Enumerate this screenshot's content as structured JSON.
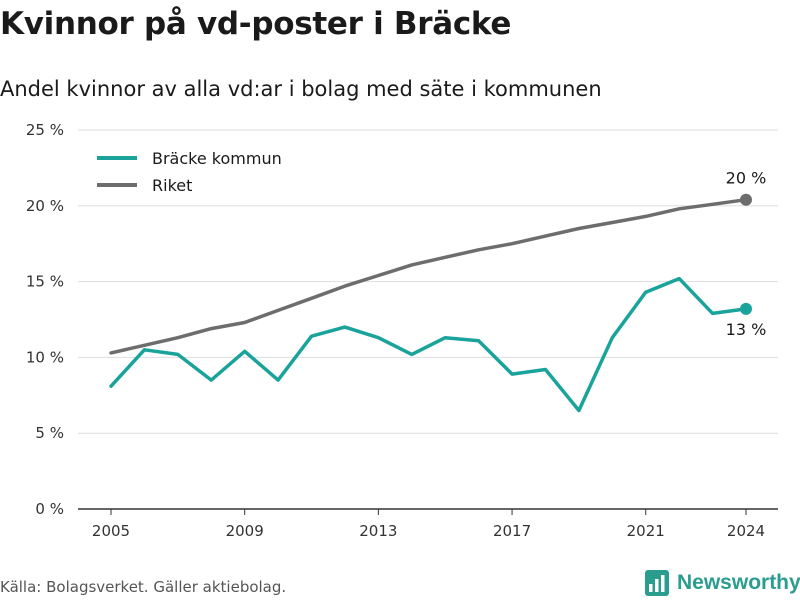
{
  "title": "Kvinnor på vd-poster i Bräcke",
  "subtitle": "Andel kvinnor av alla vd:ar i bolag med säte i kommunen",
  "source": "Källa: Bolagsverket. Gäller aktiebolag.",
  "logo_text": "Newsworthy",
  "logo_icon": "bar-chart-logo-icon",
  "chart_data": {
    "type": "line",
    "x": [
      2005,
      2006,
      2007,
      2008,
      2009,
      2010,
      2011,
      2012,
      2013,
      2014,
      2015,
      2016,
      2017,
      2018,
      2019,
      2020,
      2021,
      2022,
      2023,
      2024
    ],
    "xticks": [
      2005,
      2009,
      2013,
      2017,
      2021,
      2024
    ],
    "xtick_labels": [
      "2005",
      "2009",
      "2013",
      "2017",
      "2021",
      "2024"
    ],
    "ylim": [
      0,
      25
    ],
    "yticks": [
      0,
      5,
      10,
      15,
      20,
      25
    ],
    "ytick_labels": [
      "0 %",
      "5 %",
      "10 %",
      "15 %",
      "20 %",
      "25 %"
    ],
    "grid": true,
    "legend_position": "top-left",
    "series": [
      {
        "name": "Bräcke kommun",
        "color": "#1aa39a",
        "values": [
          8.1,
          10.5,
          10.2,
          8.5,
          10.4,
          8.5,
          11.4,
          12.0,
          11.3,
          10.2,
          11.3,
          11.1,
          8.9,
          9.2,
          6.5,
          11.3,
          14.3,
          15.2,
          12.9,
          13.2
        ],
        "end_label": "13 %"
      },
      {
        "name": "Riket",
        "color": "#6d6d6d",
        "values": [
          10.3,
          10.8,
          11.3,
          11.9,
          12.3,
          13.1,
          13.9,
          14.7,
          15.4,
          16.1,
          16.6,
          17.1,
          17.5,
          18.0,
          18.5,
          18.9,
          19.3,
          19.8,
          20.1,
          20.4
        ],
        "end_label": "20 %"
      }
    ]
  }
}
